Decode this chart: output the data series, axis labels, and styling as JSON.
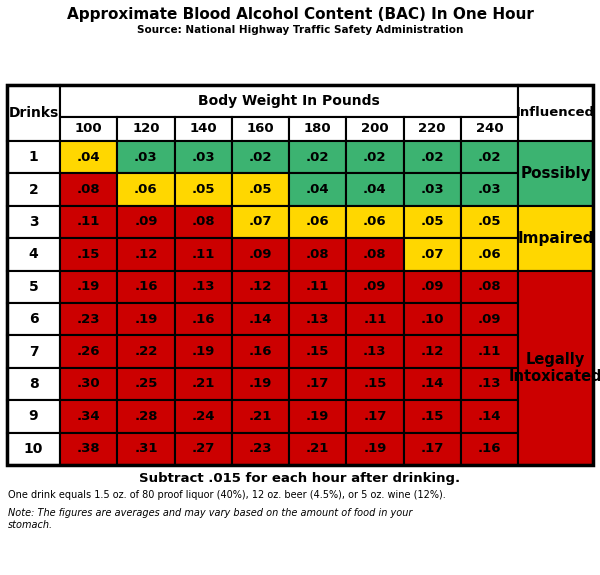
{
  "title": "Approximate Blood Alcohol Content (BAC) In One Hour",
  "subtitle": "Source: National Highway Traffic Safety Administration",
  "footer_bold": "Subtract .015 for each hour after drinking.",
  "footer_normal": "One drink equals 1.5 oz. of 80 proof liquor (40%), 12 oz. beer (4.5%), or 5 oz. wine (12%).",
  "footer_italic": "Note: The figures are averages and may vary based on the amount of food in your\nstomach.",
  "drinks": [
    1,
    2,
    3,
    4,
    5,
    6,
    7,
    8,
    9,
    10
  ],
  "weights": [
    100,
    120,
    140,
    160,
    180,
    200,
    220,
    240
  ],
  "bac_values": [
    [
      ".04",
      ".03",
      ".03",
      ".02",
      ".02",
      ".02",
      ".02",
      ".02"
    ],
    [
      ".08",
      ".06",
      ".05",
      ".05",
      ".04",
      ".04",
      ".03",
      ".03"
    ],
    [
      ".11",
      ".09",
      ".08",
      ".07",
      ".06",
      ".06",
      ".05",
      ".05"
    ],
    [
      ".15",
      ".12",
      ".11",
      ".09",
      ".08",
      ".08",
      ".07",
      ".06"
    ],
    [
      ".19",
      ".16",
      ".13",
      ".12",
      ".11",
      ".09",
      ".09",
      ".08"
    ],
    [
      ".23",
      ".19",
      ".16",
      ".14",
      ".13",
      ".11",
      ".10",
      ".09"
    ],
    [
      ".26",
      ".22",
      ".19",
      ".16",
      ".15",
      ".13",
      ".12",
      ".11"
    ],
    [
      ".30",
      ".25",
      ".21",
      ".19",
      ".17",
      ".15",
      ".14",
      ".13"
    ],
    [
      ".34",
      ".28",
      ".24",
      ".21",
      ".19",
      ".17",
      ".15",
      ".14"
    ],
    [
      ".38",
      ".31",
      ".27",
      ".23",
      ".21",
      ".19",
      ".17",
      ".16"
    ]
  ],
  "cell_colors": [
    [
      "#FFD700",
      "#3CB371",
      "#3CB371",
      "#3CB371",
      "#3CB371",
      "#3CB371",
      "#3CB371",
      "#3CB371"
    ],
    [
      "#CC0000",
      "#FFD700",
      "#FFD700",
      "#FFD700",
      "#3CB371",
      "#3CB371",
      "#3CB371",
      "#3CB371"
    ],
    [
      "#CC0000",
      "#CC0000",
      "#CC0000",
      "#FFD700",
      "#FFD700",
      "#FFD700",
      "#FFD700",
      "#FFD700"
    ],
    [
      "#CC0000",
      "#CC0000",
      "#CC0000",
      "#CC0000",
      "#CC0000",
      "#CC0000",
      "#FFD700",
      "#FFD700"
    ],
    [
      "#CC0000",
      "#CC0000",
      "#CC0000",
      "#CC0000",
      "#CC0000",
      "#CC0000",
      "#CC0000",
      "#CC0000"
    ],
    [
      "#CC0000",
      "#CC0000",
      "#CC0000",
      "#CC0000",
      "#CC0000",
      "#CC0000",
      "#CC0000",
      "#CC0000"
    ],
    [
      "#CC0000",
      "#CC0000",
      "#CC0000",
      "#CC0000",
      "#CC0000",
      "#CC0000",
      "#CC0000",
      "#CC0000"
    ],
    [
      "#CC0000",
      "#CC0000",
      "#CC0000",
      "#CC0000",
      "#CC0000",
      "#CC0000",
      "#CC0000",
      "#CC0000"
    ],
    [
      "#CC0000",
      "#CC0000",
      "#CC0000",
      "#CC0000",
      "#CC0000",
      "#CC0000",
      "#CC0000",
      "#CC0000"
    ],
    [
      "#CC0000",
      "#CC0000",
      "#CC0000",
      "#CC0000",
      "#CC0000",
      "#CC0000",
      "#CC0000",
      "#CC0000"
    ]
  ],
  "influenced_labels": [
    "Possibly",
    "Impaired",
    "Legally\nIntoxicated"
  ],
  "influenced_colors": [
    "#3CB371",
    "#FFD700",
    "#CC0000"
  ],
  "influenced_rows": [
    [
      0,
      1
    ],
    [
      2,
      3
    ],
    [
      4,
      9
    ]
  ],
  "color_green": "#3CB371",
  "color_yellow": "#FFD700",
  "color_red": "#CC0000",
  "color_white": "#FFFFFF"
}
